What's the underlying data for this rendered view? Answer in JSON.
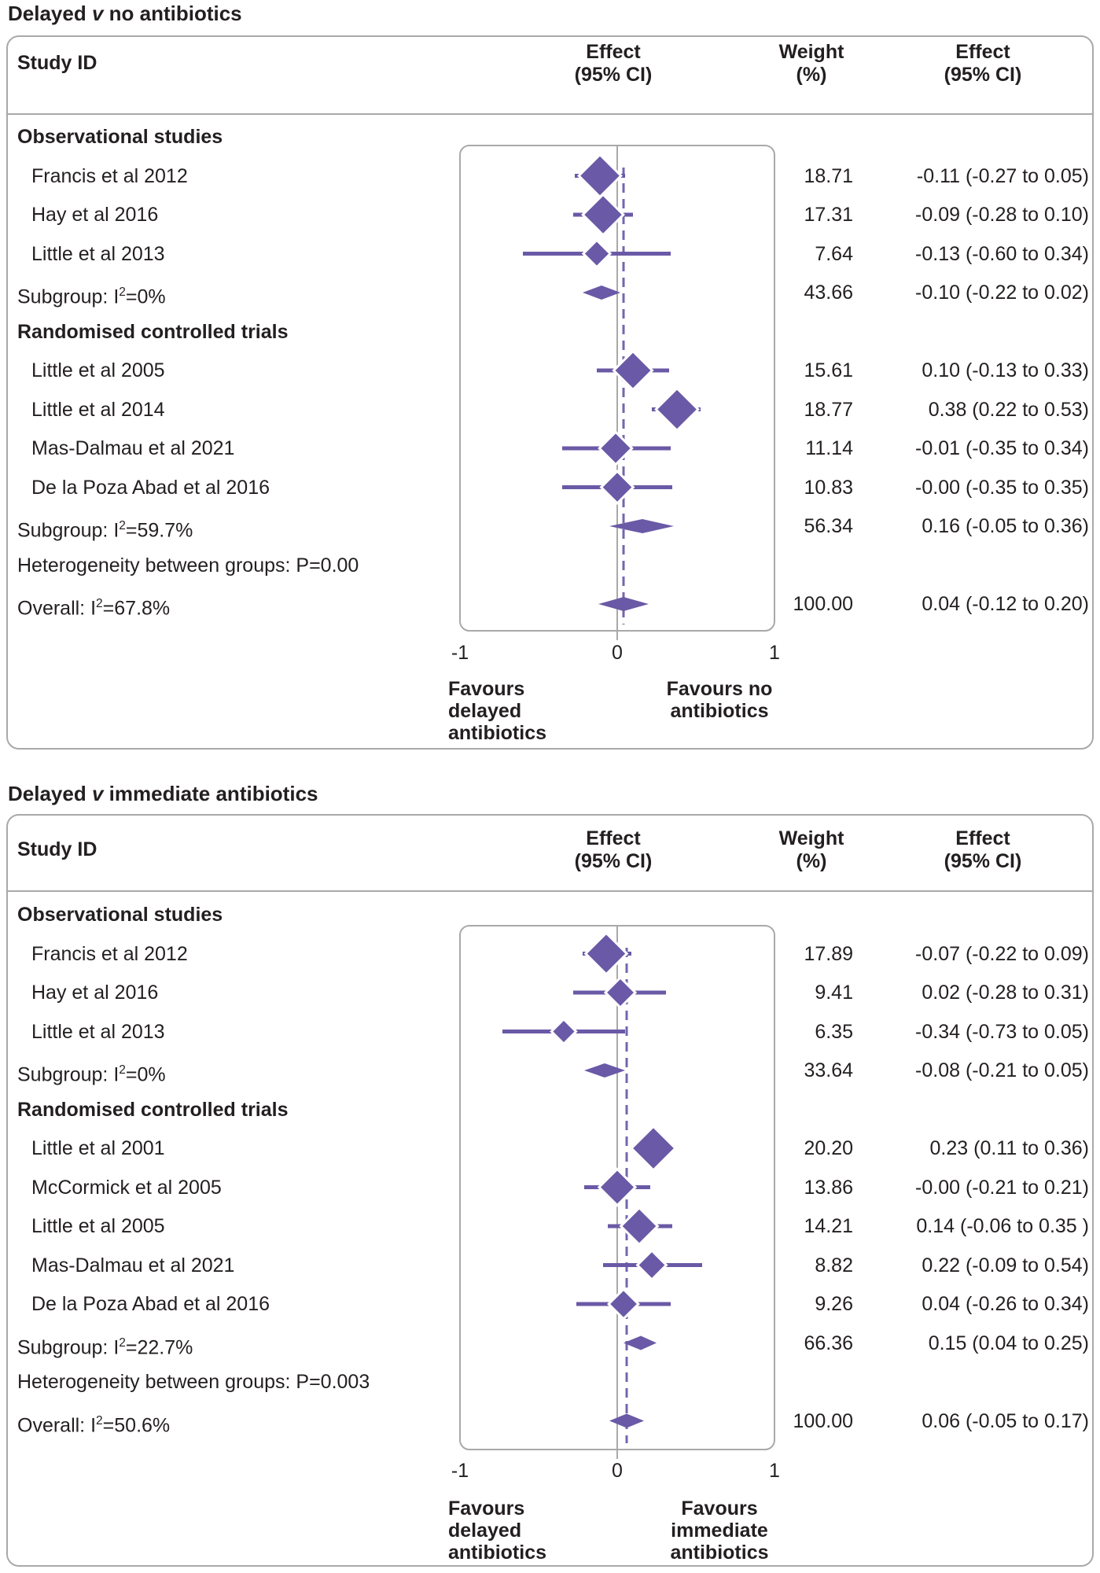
{
  "colors": {
    "accent_purple": "#6a59a6",
    "dashed_purple": "#7466ae",
    "axis_gray": "#a9a9a9",
    "border_gray": "#a9a9a9",
    "text": "#231f20",
    "background": "#ffffff"
  },
  "chart_data": [
    {
      "type": "forest",
      "title": {
        "pre": "Delayed ",
        "v_italic": "v",
        "post": " no antibiotics"
      },
      "columns": {
        "study": "Study ID",
        "effect_plot": [
          "Effect",
          "(95% CI)"
        ],
        "weight": [
          "Weight",
          "(%)"
        ],
        "effect_text": [
          "Effect",
          "(95% CI)"
        ]
      },
      "xlim": [
        -1,
        1
      ],
      "axis": {
        "values": [
          -1,
          0,
          1
        ],
        "labels": [
          "-1",
          "0",
          "1"
        ]
      },
      "zero_line": 0,
      "overall_dashed_at": 0.04,
      "favours_left": {
        "lines": [
          "Favours",
          "delayed",
          "antibiotics"
        ]
      },
      "favours_right": {
        "lines": [
          "Favours no",
          "antibiotics"
        ]
      },
      "rows": [
        {
          "type": "section",
          "label": "Observational studies"
        },
        {
          "type": "study",
          "label": "Francis et al 2012",
          "weight": "18.71",
          "weight_val": 18.71,
          "effect_label": "-0.11 (-0.27 to 0.05)",
          "est": -0.11,
          "lo": -0.27,
          "hi": 0.05
        },
        {
          "type": "study",
          "label": "Hay et al 2016",
          "weight": "17.31",
          "weight_val": 17.31,
          "effect_label": "-0.09 (-0.28 to 0.10)",
          "est": -0.09,
          "lo": -0.28,
          "hi": 0.1
        },
        {
          "type": "study",
          "label": "Little et al 2013",
          "weight": "7.64",
          "weight_val": 7.64,
          "effect_label": "-0.13 (-0.60 to 0.34)",
          "est": -0.13,
          "lo": -0.6,
          "hi": 0.34
        },
        {
          "type": "summary",
          "label": "Subgroup: I²=0%",
          "weight": "43.66",
          "weight_val": 43.66,
          "effect_label": "-0.10 (-0.22 to 0.02)",
          "est": -0.1,
          "lo": -0.22,
          "hi": 0.02
        },
        {
          "type": "section",
          "label": "Randomised controlled trials"
        },
        {
          "type": "study",
          "label": "Little et al 2005",
          "weight": "15.61",
          "weight_val": 15.61,
          "effect_label": "0.10 (-0.13 to 0.33)",
          "est": 0.1,
          "lo": -0.13,
          "hi": 0.33
        },
        {
          "type": "study",
          "label": "Little et al 2014",
          "weight": "18.77",
          "weight_val": 18.77,
          "effect_label": "0.38 (0.22 to 0.53)",
          "est": 0.38,
          "lo": 0.22,
          "hi": 0.53
        },
        {
          "type": "study",
          "label": "Mas-Dalmau et al 2021",
          "weight": "11.14",
          "weight_val": 11.14,
          "effect_label": "-0.01 (-0.35 to 0.34)",
          "est": -0.01,
          "lo": -0.35,
          "hi": 0.34
        },
        {
          "type": "study",
          "label": "De la Poza Abad et al 2016",
          "weight": "10.83",
          "weight_val": 10.83,
          "effect_label": "-0.00 (-0.35 to 0.35)",
          "est": 0.0,
          "lo": -0.35,
          "hi": 0.35
        },
        {
          "type": "summary",
          "label": "Subgroup: I²=59.7%",
          "weight": "56.34",
          "weight_val": 56.34,
          "effect_label": "0.16 (-0.05 to 0.36)",
          "est": 0.16,
          "lo": -0.05,
          "hi": 0.36
        },
        {
          "type": "plain",
          "label": "Heterogeneity between groups: P=0.00"
        },
        {
          "type": "summary",
          "label": "Overall: I²=67.8%",
          "weight": "100.00",
          "weight_val": 100.0,
          "effect_label": "0.04 (-0.12 to 0.20)",
          "est": 0.04,
          "lo": -0.12,
          "hi": 0.2
        }
      ]
    },
    {
      "type": "forest",
      "title": {
        "pre": "Delayed ",
        "v_italic": "v",
        "post": " immediate antibiotics"
      },
      "columns": {
        "study": "Study ID",
        "effect_plot": [
          "Effect",
          "(95% CI)"
        ],
        "weight": [
          "Weight",
          "(%)"
        ],
        "effect_text": [
          "Effect",
          "(95% CI)"
        ]
      },
      "xlim": [
        -1,
        1
      ],
      "axis": {
        "values": [
          -1,
          0,
          1
        ],
        "labels": [
          "-1",
          "0",
          "1"
        ]
      },
      "zero_line": 0,
      "overall_dashed_at": 0.06,
      "favours_left": {
        "lines": [
          "Favours",
          "delayed",
          "antibiotics"
        ]
      },
      "favours_right": {
        "lines": [
          "Favours",
          "immediate",
          "antibiotics"
        ]
      },
      "rows": [
        {
          "type": "section",
          "label": "Observational studies"
        },
        {
          "type": "study",
          "label": "Francis et al 2012",
          "weight": "17.89",
          "weight_val": 17.89,
          "effect_label": "-0.07 (-0.22 to 0.09)",
          "est": -0.07,
          "lo": -0.22,
          "hi": 0.09
        },
        {
          "type": "study",
          "label": "Hay et al 2016",
          "weight": "9.41",
          "weight_val": 9.41,
          "effect_label": "0.02 (-0.28 to 0.31)",
          "est": 0.02,
          "lo": -0.28,
          "hi": 0.31
        },
        {
          "type": "study",
          "label": "Little et al 2013",
          "weight": "6.35",
          "weight_val": 6.35,
          "effect_label": "-0.34 (-0.73 to 0.05)",
          "est": -0.34,
          "lo": -0.73,
          "hi": 0.05
        },
        {
          "type": "summary",
          "label": "Subgroup: I²=0%",
          "weight": "33.64",
          "weight_val": 33.64,
          "effect_label": "-0.08 (-0.21 to 0.05)",
          "est": -0.08,
          "lo": -0.21,
          "hi": 0.05
        },
        {
          "type": "section",
          "label": "Randomised controlled trials"
        },
        {
          "type": "study",
          "label": "Little et al 2001",
          "weight": "20.20",
          "weight_val": 20.2,
          "effect_label": "0.23 (0.11 to 0.36)",
          "est": 0.23,
          "lo": 0.11,
          "hi": 0.36
        },
        {
          "type": "study",
          "label": "McCormick et al 2005",
          "weight": "13.86",
          "weight_val": 13.86,
          "effect_label": "-0.00 (-0.21 to 0.21)",
          "est": 0.0,
          "lo": -0.21,
          "hi": 0.21
        },
        {
          "type": "study",
          "label": "Little et al 2005",
          "weight": "14.21",
          "weight_val": 14.21,
          "effect_label": "0.14 (-0.06 to 0.35 )",
          "est": 0.14,
          "lo": -0.06,
          "hi": 0.35
        },
        {
          "type": "study",
          "label": "Mas-Dalmau et al 2021",
          "weight": "8.82",
          "weight_val": 8.82,
          "effect_label": "0.22 (-0.09 to 0.54)",
          "est": 0.22,
          "lo": -0.09,
          "hi": 0.54
        },
        {
          "type": "study",
          "label": "De la Poza Abad et al 2016",
          "weight": "9.26",
          "weight_val": 9.26,
          "effect_label": "0.04 (-0.26 to 0.34)",
          "est": 0.04,
          "lo": -0.26,
          "hi": 0.34
        },
        {
          "type": "summary",
          "label": "Subgroup: I²=22.7%",
          "weight": "66.36",
          "weight_val": 66.36,
          "effect_label": "0.15 (0.04 to 0.25)",
          "est": 0.15,
          "lo": 0.04,
          "hi": 0.25
        },
        {
          "type": "plain",
          "label": "Heterogeneity between groups: P=0.003"
        },
        {
          "type": "summary",
          "label": "Overall: I²=50.6%",
          "weight": "100.00",
          "weight_val": 100.0,
          "effect_label": "0.06 (-0.05 to 0.17)",
          "est": 0.06,
          "lo": -0.05,
          "hi": 0.17
        }
      ]
    }
  ]
}
